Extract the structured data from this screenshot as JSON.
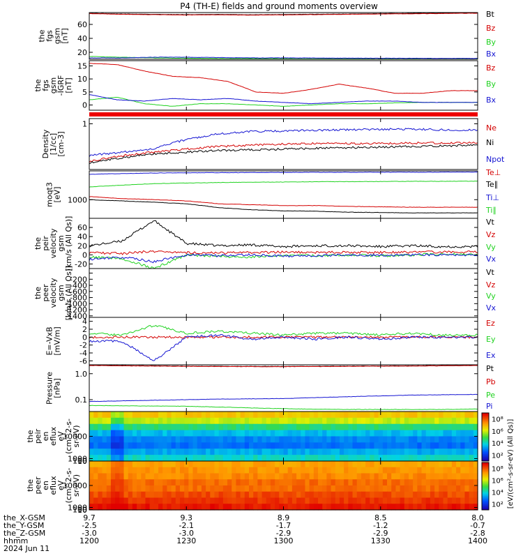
{
  "title": "P4 (TH-E) fields and ground moments overview",
  "colors": {
    "black": "#000000",
    "red": "#d40000",
    "green": "#1fd21f",
    "blue": "#1414d2",
    "bar_red": "#ee0000",
    "axis": "#000000"
  },
  "chart_data": [
    {
      "id": "p1",
      "type": "line",
      "ylabel": [
        "the",
        "fgs",
        "gsm",
        "[nT]"
      ],
      "ylim": [
        10,
        77
      ],
      "yticks": [
        20,
        40,
        60
      ],
      "series": [
        {
          "name": "Bt",
          "color": "black",
          "values": [
            76,
            75,
            74.5,
            74,
            74.3,
            73.8,
            74.2,
            74.6,
            75,
            75.4,
            75.8,
            76.2,
            76.6
          ]
        },
        {
          "name": "Bz",
          "color": "red",
          "values": [
            75.5,
            74.5,
            74,
            73.5,
            73.8,
            73.3,
            73.7,
            74.1,
            74.5,
            74.9,
            75.3,
            75.7,
            76.1
          ]
        },
        {
          "name": "By",
          "color": "green",
          "values": [
            14,
            13,
            12,
            11.5,
            11,
            11,
            10.8,
            10.6,
            10.6,
            10.5,
            10.5,
            10.4,
            10.4
          ]
        },
        {
          "name": "Bx",
          "color": "blue",
          "values": [
            12,
            12,
            13,
            13,
            12.5,
            12,
            12,
            11.8,
            11.6,
            11.5,
            11.4,
            11.3,
            11.2
          ]
        }
      ]
    },
    {
      "id": "p2",
      "type": "line",
      "ylabel": [
        "the",
        "fgs",
        "gsm",
        "-IGRF",
        "[nT]"
      ],
      "ylim": [
        -2,
        17
      ],
      "yticks": [
        0,
        5,
        10,
        15
      ],
      "series": [
        {
          "name": "Bz",
          "color": "red",
          "values": [
            16,
            15.5,
            13,
            11,
            10.5,
            9,
            5,
            4.5,
            6,
            8,
            6.5,
            4.5,
            4.5,
            5.5,
            5.5
          ]
        },
        {
          "name": "By",
          "color": "green",
          "values": [
            2,
            3,
            0.5,
            -0.5,
            0.5,
            0.5,
            0,
            -0.5,
            0,
            0.5,
            0.5,
            0.8,
            1,
            1,
            1
          ]
        },
        {
          "name": "Bx",
          "color": "blue",
          "values": [
            4,
            2,
            1.5,
            2.5,
            2,
            2.5,
            1.5,
            1,
            0.5,
            1,
            1.5,
            1.5,
            1,
            1,
            1
          ]
        }
      ]
    },
    {
      "id": "p3",
      "type": "line",
      "log": true,
      "ylabel": [
        "Density",
        "[1/cc]",
        "[cm-3]"
      ],
      "ylim": [
        0.1,
        1.3
      ],
      "yticks": [
        1
      ],
      "series": [
        {
          "name": "Ne",
          "color": "red",
          "values": [
            0.15,
            0.2,
            0.24,
            0.28,
            0.32,
            0.34,
            0.36,
            0.37,
            0.37,
            0.37,
            0.38,
            0.38,
            0.38
          ]
        },
        {
          "name": "Ni",
          "color": "black",
          "values": [
            0.14,
            0.18,
            0.22,
            0.24,
            0.26,
            0.27,
            0.28,
            0.29,
            0.3,
            0.31,
            0.32,
            0.33,
            0.34
          ]
        },
        {
          "name": "Npot",
          "color": "blue",
          "values": [
            0.2,
            0.24,
            0.28,
            0.45,
            0.6,
            0.68,
            0.7,
            0.72,
            0.74,
            0.76,
            0.76,
            0.74,
            0.73
          ]
        }
      ]
    },
    {
      "id": "p4",
      "type": "line",
      "log": true,
      "ylabel": [
        "moqt3",
        "[eV]"
      ],
      "ylim": [
        200,
        12000
      ],
      "yticks": [
        1000
      ],
      "series": [
        {
          "name": "Te⊥",
          "color": "red",
          "values": [
            1300,
            1100,
            1000,
            900,
            700,
            650,
            600,
            600,
            560,
            540,
            520,
            520,
            520
          ]
        },
        {
          "name": "Te∥",
          "color": "black",
          "values": [
            1000,
            900,
            800,
            700,
            500,
            420,
            380,
            370,
            340,
            330,
            320,
            320,
            320
          ]
        },
        {
          "name": "Ti⊥",
          "color": "blue",
          "values": [
            9000,
            9500,
            10000,
            10200,
            10300,
            10400,
            10500,
            10600,
            10600,
            10700,
            10700,
            10800,
            10800
          ]
        },
        {
          "name": "Ti∥",
          "color": "green",
          "values": [
            3000,
            3500,
            4000,
            4200,
            4400,
            4500,
            4600,
            4700,
            4750,
            4800,
            4850,
            4900,
            4950
          ]
        }
      ]
    },
    {
      "id": "p5",
      "type": "line",
      "ylabel": [
        "the",
        "peir",
        "velocity",
        "gsm",
        "[km/s (All Qs)]"
      ],
      "ylim": [
        -30,
        80
      ],
      "yticks": [
        -20,
        0,
        20,
        40,
        60
      ],
      "series": [
        {
          "name": "Vt",
          "color": "black",
          "values": [
            20,
            30,
            75,
            25,
            20,
            22,
            18,
            20,
            20,
            18,
            20,
            18,
            18
          ]
        },
        {
          "name": "Vz",
          "color": "red",
          "values": [
            5,
            3,
            8,
            5,
            4,
            5,
            6,
            5,
            6,
            5,
            6,
            6,
            6
          ]
        },
        {
          "name": "Vy",
          "color": "green",
          "values": [
            -5,
            -8,
            -30,
            0,
            -3,
            -5,
            0,
            -2,
            0,
            -2,
            0,
            2,
            0
          ]
        },
        {
          "name": "Vx",
          "color": "blue",
          "values": [
            -10,
            -5,
            -15,
            0,
            -2,
            0,
            -3,
            -2,
            0,
            -1,
            0,
            0,
            0
          ]
        }
      ]
    },
    {
      "id": "p6",
      "type": "line",
      "ylabel": [
        "the",
        "peer",
        "velocity",
        "gsm",
        "[km/s (All Qs)]"
      ],
      "ylim": [
        -1450,
        150
      ],
      "yticks": [
        -1400,
        -1200,
        -1000,
        -800,
        -600,
        -400,
        -200,
        0
      ],
      "ytick_labels": [
        "-1400",
        "-1200",
        "-1000",
        "-800",
        "-600",
        "-400",
        "-200",
        ""
      ],
      "series": [
        {
          "name": "Vt",
          "color": "black",
          "values": []
        },
        {
          "name": "Vz",
          "color": "red",
          "values": []
        },
        {
          "name": "Vy",
          "color": "green",
          "values": []
        },
        {
          "name": "Vx",
          "color": "blue",
          "values": []
        }
      ]
    },
    {
      "id": "p7",
      "type": "line",
      "ylabel": [
        "E=-VxB",
        "[mV/m]"
      ],
      "ylim": [
        -7,
        5
      ],
      "yticks": [
        -6,
        -4,
        -2,
        0,
        2,
        4
      ],
      "series": [
        {
          "name": "Ez",
          "color": "red",
          "values": [
            0,
            0,
            0,
            0,
            0,
            0,
            0,
            0,
            0,
            0,
            0,
            0,
            0
          ]
        },
        {
          "name": "Ey",
          "color": "green",
          "values": [
            1,
            0.5,
            3,
            1,
            1.5,
            1,
            0.5,
            1,
            1,
            0.5,
            1,
            0.5,
            0.5
          ]
        },
        {
          "name": "Ex",
          "color": "blue",
          "values": [
            -1,
            -1,
            -6,
            0,
            0.5,
            -0.5,
            0,
            -0.5,
            0,
            -0.5,
            0,
            0,
            0
          ]
        }
      ]
    },
    {
      "id": "p8",
      "type": "line",
      "log": true,
      "ylabel": [
        "Pressure",
        "[nPa]"
      ],
      "ylim": [
        0.035,
        2.2
      ],
      "yticks": [
        0.1,
        1
      ],
      "ytick_labels": [
        "0.1",
        "1.0"
      ],
      "series": [
        {
          "name": "Pt",
          "color": "black",
          "values": [
            2.1,
            2.05,
            2.0,
            1.95,
            1.92,
            1.9,
            1.9,
            1.92,
            1.95,
            1.98,
            2.0,
            2.05,
            2.1
          ]
        },
        {
          "name": "Pb",
          "color": "red",
          "values": [
            2.08,
            2.02,
            1.97,
            1.92,
            1.89,
            1.87,
            1.87,
            1.89,
            1.92,
            1.95,
            1.97,
            2.02,
            2.07
          ]
        },
        {
          "name": "Pe",
          "color": "green",
          "values": [
            0.06,
            0.058,
            0.057,
            0.056,
            0.052,
            0.048,
            0.045,
            0.043,
            0.042,
            0.042,
            0.042,
            0.042,
            0.044
          ]
        },
        {
          "name": "Pi",
          "color": "blue",
          "values": [
            0.085,
            0.09,
            0.095,
            0.1,
            0.105,
            0.108,
            0.11,
            0.12,
            0.13,
            0.14,
            0.15,
            0.155,
            0.16
          ]
        }
      ]
    },
    {
      "id": "p9",
      "type": "heatmap",
      "ylabel": [
        "the",
        "peir",
        "en",
        "eflux",
        "eV",
        "(cm^2-s-",
        "sr-eV)"
      ],
      "ylim": [
        5,
        20000
      ],
      "yticks": [
        10,
        100,
        1000,
        10000
      ],
      "energy_bands_level": [
        0.72,
        0.62,
        0.45,
        0.32,
        0.25,
        0.22,
        0.3,
        0.38
      ]
    },
    {
      "id": "p10",
      "type": "heatmap",
      "ylabel": [
        "the",
        "peer",
        "en",
        "eflux",
        "eV",
        "(cm^2-s-",
        "sr-eV)"
      ],
      "ylim": [
        5,
        20000
      ],
      "yticks": [
        10,
        100,
        1000,
        10000
      ],
      "energy_bands_level": [
        0.78,
        0.8,
        0.82,
        0.86,
        0.86,
        0.9,
        0.93,
        0.97
      ]
    }
  ],
  "colorbar": {
    "tick_labels": [
      "10²",
      "10⁴",
      "10⁶",
      "10⁸"
    ],
    "label": "[eV/(cm²-s-sr-eV) (All Qs)]"
  },
  "ephemeris": {
    "rows": [
      {
        "label": "the_X-GSM",
        "values": [
          "9.7",
          "9.3",
          "8.9",
          "8.5",
          "8.0"
        ]
      },
      {
        "label": "the_Y-GSM",
        "values": [
          "-2.5",
          "-2.1",
          "-1.7",
          "-1.2",
          "-0.7"
        ]
      },
      {
        "label": "the_Z-GSM",
        "values": [
          "-3.0",
          "-3.0",
          "-2.9",
          "-2.9",
          "-2.8"
        ]
      },
      {
        "label": "hhmm",
        "values": [
          "1200",
          "1230",
          "1300",
          "1330",
          "1400"
        ]
      }
    ],
    "date": "2024 Jun 11"
  }
}
